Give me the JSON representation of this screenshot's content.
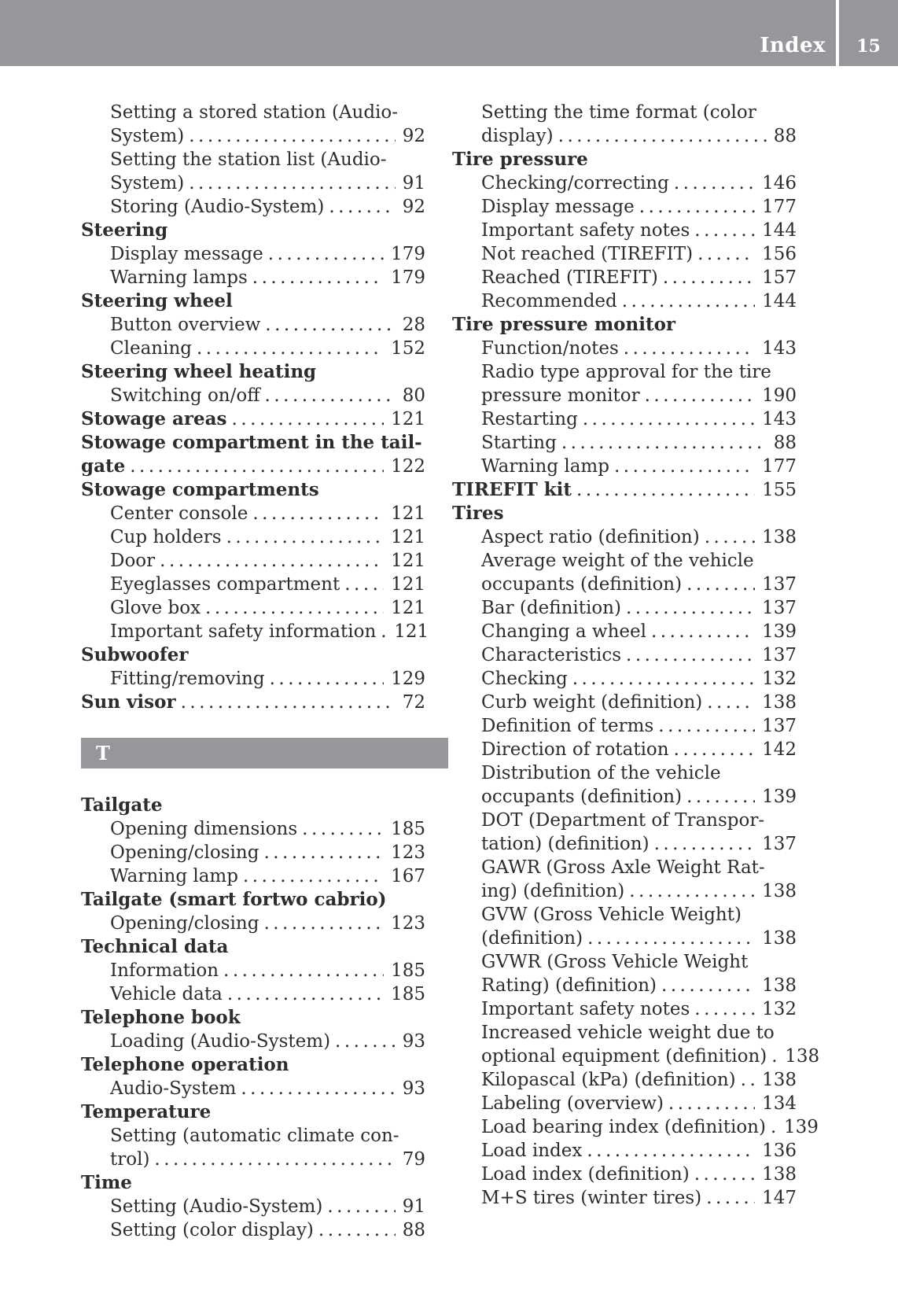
{
  "header": {
    "title": "Index",
    "page_number": "15"
  },
  "colors": {
    "header_gray": "#96979a",
    "section_bar_gray": "#96979a",
    "text": "#2d2d2f",
    "page_bg": "#ffffff"
  },
  "left_column": {
    "rows": [
      {
        "text": "Setting a stored station (Audio-",
        "indent": 1
      },
      {
        "text": "System)",
        "indent": 1,
        "page": "92"
      },
      {
        "text": "Setting the station list (Audio-",
        "indent": 1
      },
      {
        "text": "System)",
        "indent": 1,
        "page": "91"
      },
      {
        "text": "Storing (Audio-System)",
        "indent": 1,
        "page": "92"
      },
      {
        "text": "Steering",
        "bold": true,
        "indent": 0
      },
      {
        "text": "Display message",
        "indent": 1,
        "page": "179"
      },
      {
        "text": "Warning lamps",
        "indent": 1,
        "page": "179"
      },
      {
        "text": "Steering wheel",
        "bold": true,
        "indent": 0
      },
      {
        "text": "Button overview",
        "indent": 1,
        "page": "28"
      },
      {
        "text": "Cleaning",
        "indent": 1,
        "page": "152"
      },
      {
        "text": "Steering wheel heating",
        "bold": true,
        "indent": 0
      },
      {
        "text": "Switching on/off",
        "indent": 1,
        "page": "80"
      },
      {
        "text": "Stowage areas",
        "bold": true,
        "indent": 0,
        "page": "121"
      },
      {
        "text": "Stowage compartment in the tail-",
        "bold": true,
        "indent": 0
      },
      {
        "text": "gate",
        "bold": true,
        "indent": 0,
        "page": "122"
      },
      {
        "text": "Stowage compartments",
        "bold": true,
        "indent": 0
      },
      {
        "text": "Center console",
        "indent": 1,
        "page": "121"
      },
      {
        "text": "Cup holders",
        "indent": 1,
        "page": "121"
      },
      {
        "text": "Door",
        "indent": 1,
        "page": "121"
      },
      {
        "text": "Eyeglasses compartment",
        "indent": 1,
        "page": "121"
      },
      {
        "text": "Glove box",
        "indent": 1,
        "page": "121"
      },
      {
        "text": "Important safety information",
        "indent": 1,
        "page": "121"
      },
      {
        "text": "Subwoofer",
        "bold": true,
        "indent": 0
      },
      {
        "text": "Fitting/removing",
        "indent": 1,
        "page": "129"
      },
      {
        "text": "Sun visor",
        "bold": true,
        "indent": 0,
        "page": "72"
      },
      {
        "bar": true,
        "text": "T"
      },
      {
        "text": "Tailgate",
        "bold": true,
        "indent": 0
      },
      {
        "text": "Opening dimensions",
        "indent": 1,
        "page": "185"
      },
      {
        "text": "Opening/closing",
        "indent": 1,
        "page": "123"
      },
      {
        "text": "Warning lamp",
        "indent": 1,
        "page": "167"
      },
      {
        "text": "Tailgate (smart fortwo cabrio)",
        "bold": true,
        "indent": 0
      },
      {
        "text": "Opening/closing",
        "indent": 1,
        "page": "123"
      },
      {
        "text": "Technical data",
        "bold": true,
        "indent": 0
      },
      {
        "text": "Information",
        "indent": 1,
        "page": "185"
      },
      {
        "text": "Vehicle data",
        "indent": 1,
        "page": "185"
      },
      {
        "text": "Telephone book",
        "bold": true,
        "indent": 0
      },
      {
        "text": "Loading (Audio-System)",
        "indent": 1,
        "page": "93"
      },
      {
        "text": "Telephone operation",
        "bold": true,
        "indent": 0
      },
      {
        "text": "Audio-System",
        "indent": 1,
        "page": "93"
      },
      {
        "text": "Temperature",
        "bold": true,
        "indent": 0
      },
      {
        "text": "Setting (automatic climate con-",
        "indent": 1
      },
      {
        "text": "trol)",
        "indent": 1,
        "page": "79"
      },
      {
        "text": "Time",
        "bold": true,
        "indent": 0
      },
      {
        "text": "Setting (Audio-System)",
        "indent": 1,
        "page": "91"
      },
      {
        "text": "Setting (color display)",
        "indent": 1,
        "page": "88"
      }
    ]
  },
  "right_column": {
    "rows": [
      {
        "text": "Setting the time format (color",
        "indent": 1
      },
      {
        "text": "display)",
        "indent": 1,
        "page": "88"
      },
      {
        "text": "Tire pressure",
        "bold": true,
        "indent": 0
      },
      {
        "text": "Checking/correcting",
        "indent": 1,
        "page": "146"
      },
      {
        "text": "Display message",
        "indent": 1,
        "page": "177"
      },
      {
        "text": "Important safety notes",
        "indent": 1,
        "page": "144"
      },
      {
        "text": "Not reached (TIREFIT)",
        "indent": 1,
        "page": "156"
      },
      {
        "text": "Reached (TIREFIT)",
        "indent": 1,
        "page": "157"
      },
      {
        "text": "Recommended",
        "indent": 1,
        "page": "144"
      },
      {
        "text": "Tire pressure monitor",
        "bold": true,
        "indent": 0
      },
      {
        "text": "Function/notes",
        "indent": 1,
        "page": "143"
      },
      {
        "text": "Radio type approval for the tire",
        "indent": 1
      },
      {
        "text": "pressure monitor",
        "indent": 1,
        "page": "190"
      },
      {
        "text": "Restarting",
        "indent": 1,
        "page": "143"
      },
      {
        "text": "Starting",
        "indent": 1,
        "page": "88"
      },
      {
        "text": "Warning lamp",
        "indent": 1,
        "page": "177"
      },
      {
        "text": "TIREFIT kit",
        "bold": true,
        "indent": 0,
        "page": "155"
      },
      {
        "text": "Tires",
        "bold": true,
        "indent": 0
      },
      {
        "text": "Aspect ratio (definition)",
        "indent": 1,
        "page": "138"
      },
      {
        "text": "Average weight of the vehicle",
        "indent": 1
      },
      {
        "text": "occupants (definition)",
        "indent": 1,
        "page": "137"
      },
      {
        "text": "Bar (definition)",
        "indent": 1,
        "page": "137"
      },
      {
        "text": "Changing a wheel",
        "indent": 1,
        "page": "139"
      },
      {
        "text": "Characteristics",
        "indent": 1,
        "page": "137"
      },
      {
        "text": "Checking",
        "indent": 1,
        "page": "132"
      },
      {
        "text": "Curb weight (definition)",
        "indent": 1,
        "page": "138"
      },
      {
        "text": "Definition of terms",
        "indent": 1,
        "page": "137"
      },
      {
        "text": "Direction of rotation",
        "indent": 1,
        "page": "142"
      },
      {
        "text": "Distribution of the vehicle",
        "indent": 1
      },
      {
        "text": "occupants (definition)",
        "indent": 1,
        "page": "139"
      },
      {
        "text": "DOT (Department of Transpor-",
        "indent": 1
      },
      {
        "text": "tation) (definition)",
        "indent": 1,
        "page": "137"
      },
      {
        "text": "GAWR (Gross Axle Weight Rat-",
        "indent": 1
      },
      {
        "text": "ing) (definition)",
        "indent": 1,
        "page": "138"
      },
      {
        "text": "GVW (Gross Vehicle Weight)",
        "indent": 1
      },
      {
        "text": "(definition)",
        "indent": 1,
        "page": "138"
      },
      {
        "text": "GVWR (Gross Vehicle Weight",
        "indent": 1
      },
      {
        "text": "Rating) (definition)",
        "indent": 1,
        "page": "138"
      },
      {
        "text": "Important safety notes",
        "indent": 1,
        "page": "132"
      },
      {
        "text": "Increased vehicle weight due to",
        "indent": 1
      },
      {
        "text": "optional equipment (definition)",
        "indent": 1,
        "page": "138"
      },
      {
        "text": "Kilopascal (kPa) (definition)",
        "indent": 1,
        "page": "138"
      },
      {
        "text": "Labeling (overview)",
        "indent": 1,
        "page": "134"
      },
      {
        "text": "Load bearing index (definition)",
        "indent": 1,
        "page": "139"
      },
      {
        "text": "Load index",
        "indent": 1,
        "page": "136"
      },
      {
        "text": "Load index (definition)",
        "indent": 1,
        "page": "138"
      },
      {
        "text": "M+S tires (winter tires)",
        "indent": 1,
        "page": "147"
      }
    ]
  }
}
